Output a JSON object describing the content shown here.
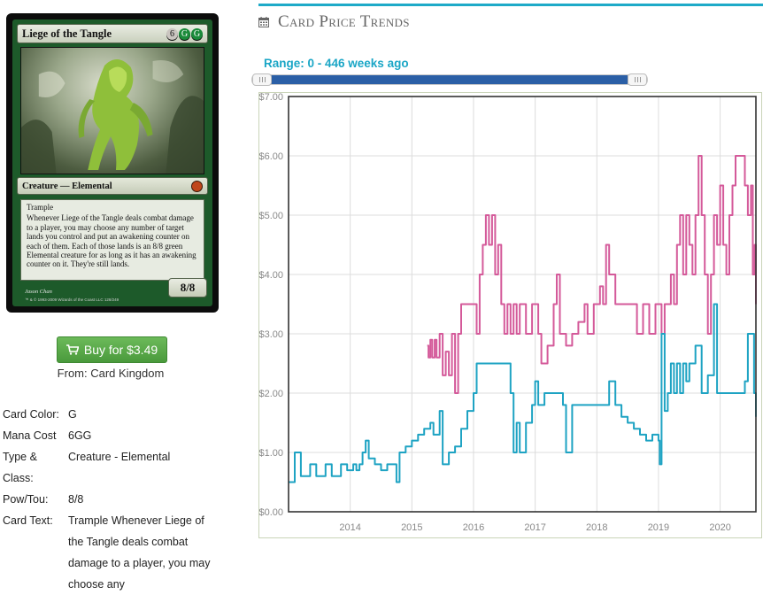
{
  "card": {
    "name": "Liege of the Tangle",
    "mana_symbols": [
      "6",
      "G",
      "G"
    ],
    "type_line": "Creature — Elemental",
    "keyword": "Trample",
    "rules_text": "Whenever Liege of the Tangle deals combat damage to a player, you may choose any number of target lands you control and put an awakening counter on each of them. Each of those lands is an 8/8 green Elemental creature for as long as it has an awakening counter on it. They're still lands.",
    "power_toughness": "8/8",
    "artist": "Jason Chan",
    "copyright": "™ & © 1993-2009 Wizards of the Coast LLC 128/249"
  },
  "buy": {
    "label": "Buy for $3.49",
    "from": "From: Card Kingdom",
    "icon": "cart-icon"
  },
  "details": {
    "color_label": "Card Color:",
    "color_value": "G",
    "cost_label": "Mana Cost",
    "cost_value": "6GG",
    "type_label": "Type & Class:",
    "type_value": "Creature - Elemental",
    "pt_label": "Pow/Tou:",
    "pt_value": "8/8",
    "text_label": "Card Text:",
    "text_value": "Trample Whenever Liege of the Tangle deals combat damage to a player, you may choose any"
  },
  "section": {
    "title": "Card Price Trends",
    "icon": "calendar-icon"
  },
  "range": {
    "label": "Range: 0 - 446 weeks ago",
    "min_weeks": 0,
    "max_weeks": 446
  },
  "colors": {
    "accent": "#1eaac8",
    "buy_green": "#5cb04b",
    "series_pink": "#d45a9a",
    "series_blue": "#1ea3c3"
  },
  "chart_data": {
    "type": "line",
    "title": "",
    "xlabel": "",
    "ylabel": "",
    "xlim": [
      2013.0,
      2020.58
    ],
    "ylim": [
      0,
      7
    ],
    "yticks": [
      "$0.00",
      "$1.00",
      "$2.00",
      "$3.00",
      "$4.00",
      "$5.00",
      "$6.00",
      "$7.00"
    ],
    "xticks": [
      "2014",
      "2015",
      "2016",
      "2017",
      "2018",
      "2019",
      "2020"
    ],
    "grid": true,
    "series": [
      {
        "color": "#d45a9a",
        "points": [
          [
            2015.25,
            2.8
          ],
          [
            2015.27,
            2.6
          ],
          [
            2015.3,
            2.9
          ],
          [
            2015.33,
            2.6
          ],
          [
            2015.37,
            2.9
          ],
          [
            2015.4,
            2.6
          ],
          [
            2015.45,
            3.0
          ],
          [
            2015.5,
            2.3
          ],
          [
            2015.55,
            2.7
          ],
          [
            2015.6,
            2.3
          ],
          [
            2015.65,
            3.0
          ],
          [
            2015.7,
            2.0
          ],
          [
            2015.75,
            3.0
          ],
          [
            2015.8,
            3.5
          ],
          [
            2015.95,
            3.5
          ],
          [
            2016.0,
            3.5
          ],
          [
            2016.05,
            3.0
          ],
          [
            2016.1,
            4.0
          ],
          [
            2016.15,
            4.5
          ],
          [
            2016.2,
            5.0
          ],
          [
            2016.25,
            4.5
          ],
          [
            2016.3,
            5.0
          ],
          [
            2016.35,
            4.0
          ],
          [
            2016.4,
            4.5
          ],
          [
            2016.45,
            3.5
          ],
          [
            2016.5,
            3.0
          ],
          [
            2016.55,
            3.5
          ],
          [
            2016.6,
            3.0
          ],
          [
            2016.65,
            3.5
          ],
          [
            2016.7,
            3.0
          ],
          [
            2016.75,
            3.5
          ],
          [
            2016.85,
            3.0
          ],
          [
            2016.95,
            3.5
          ],
          [
            2017.05,
            3.0
          ],
          [
            2017.1,
            2.5
          ],
          [
            2017.2,
            2.8
          ],
          [
            2017.3,
            3.5
          ],
          [
            2017.35,
            4.0
          ],
          [
            2017.4,
            3.0
          ],
          [
            2017.5,
            2.8
          ],
          [
            2017.6,
            3.0
          ],
          [
            2017.7,
            3.2
          ],
          [
            2017.8,
            3.5
          ],
          [
            2017.85,
            3.0
          ],
          [
            2017.95,
            3.5
          ],
          [
            2018.0,
            3.5
          ],
          [
            2018.05,
            3.8
          ],
          [
            2018.1,
            3.5
          ],
          [
            2018.15,
            4.5
          ],
          [
            2018.2,
            4.0
          ],
          [
            2018.3,
            3.5
          ],
          [
            2018.45,
            3.5
          ],
          [
            2018.55,
            3.5
          ],
          [
            2018.65,
            3.0
          ],
          [
            2018.75,
            3.5
          ],
          [
            2018.85,
            3.0
          ],
          [
            2018.95,
            3.5
          ],
          [
            2019.0,
            3.5
          ],
          [
            2019.05,
            3.0
          ],
          [
            2019.1,
            3.5
          ],
          [
            2019.15,
            3.5
          ],
          [
            2019.2,
            4.0
          ],
          [
            2019.25,
            3.5
          ],
          [
            2019.3,
            4.5
          ],
          [
            2019.35,
            5.0
          ],
          [
            2019.4,
            4.0
          ],
          [
            2019.45,
            5.0
          ],
          [
            2019.5,
            4.5
          ],
          [
            2019.55,
            4.0
          ],
          [
            2019.6,
            5.0
          ],
          [
            2019.65,
            6.0
          ],
          [
            2019.7,
            5.0
          ],
          [
            2019.75,
            4.0
          ],
          [
            2019.8,
            3.0
          ],
          [
            2019.85,
            4.0
          ],
          [
            2019.9,
            5.0
          ],
          [
            2019.95,
            4.5
          ],
          [
            2020.0,
            5.5
          ],
          [
            2020.05,
            4.5
          ],
          [
            2020.1,
            4.0
          ],
          [
            2020.15,
            5.0
          ],
          [
            2020.2,
            5.5
          ],
          [
            2020.25,
            6.0
          ],
          [
            2020.3,
            6.0
          ],
          [
            2020.35,
            6.0
          ],
          [
            2020.4,
            5.5
          ],
          [
            2020.45,
            5.0
          ],
          [
            2020.5,
            5.5
          ],
          [
            2020.53,
            4.0
          ],
          [
            2020.56,
            4.5
          ],
          [
            2020.58,
            3.5
          ]
        ]
      },
      {
        "color": "#1ea3c3",
        "points": [
          [
            2013.0,
            0.5
          ],
          [
            2013.05,
            0.5
          ],
          [
            2013.1,
            1.0
          ],
          [
            2013.15,
            1.0
          ],
          [
            2013.2,
            0.6
          ],
          [
            2013.3,
            0.6
          ],
          [
            2013.35,
            0.8
          ],
          [
            2013.45,
            0.6
          ],
          [
            2013.55,
            0.6
          ],
          [
            2013.6,
            0.8
          ],
          [
            2013.7,
            0.6
          ],
          [
            2013.8,
            0.6
          ],
          [
            2013.85,
            0.8
          ],
          [
            2013.95,
            0.7
          ],
          [
            2014.0,
            0.7
          ],
          [
            2014.05,
            0.8
          ],
          [
            2014.1,
            0.7
          ],
          [
            2014.15,
            0.8
          ],
          [
            2014.2,
            1.0
          ],
          [
            2014.25,
            1.2
          ],
          [
            2014.3,
            0.9
          ],
          [
            2014.4,
            0.8
          ],
          [
            2014.5,
            0.7
          ],
          [
            2014.6,
            0.8
          ],
          [
            2014.7,
            0.8
          ],
          [
            2014.75,
            0.5
          ],
          [
            2014.8,
            1.0
          ],
          [
            2014.9,
            1.1
          ],
          [
            2015.0,
            1.2
          ],
          [
            2015.1,
            1.3
          ],
          [
            2015.2,
            1.4
          ],
          [
            2015.3,
            1.5
          ],
          [
            2015.35,
            1.3
          ],
          [
            2015.45,
            1.7
          ],
          [
            2015.5,
            0.8
          ],
          [
            2015.6,
            1.0
          ],
          [
            2015.7,
            1.1
          ],
          [
            2015.8,
            1.4
          ],
          [
            2015.9,
            1.7
          ],
          [
            2016.0,
            2.0
          ],
          [
            2016.05,
            2.5
          ],
          [
            2016.15,
            2.5
          ],
          [
            2016.25,
            2.5
          ],
          [
            2016.35,
            2.5
          ],
          [
            2016.45,
            2.5
          ],
          [
            2016.55,
            2.5
          ],
          [
            2016.6,
            2.0
          ],
          [
            2016.65,
            1.0
          ],
          [
            2016.7,
            1.5
          ],
          [
            2016.75,
            1.0
          ],
          [
            2016.85,
            1.5
          ],
          [
            2016.95,
            1.8
          ],
          [
            2017.0,
            2.2
          ],
          [
            2017.05,
            1.8
          ],
          [
            2017.15,
            2.0
          ],
          [
            2017.25,
            2.0
          ],
          [
            2017.35,
            2.0
          ],
          [
            2017.45,
            1.8
          ],
          [
            2017.5,
            1.0
          ],
          [
            2017.6,
            1.8
          ],
          [
            2017.7,
            1.8
          ],
          [
            2017.8,
            1.8
          ],
          [
            2017.9,
            1.8
          ],
          [
            2018.0,
            1.8
          ],
          [
            2018.1,
            1.8
          ],
          [
            2018.2,
            2.2
          ],
          [
            2018.3,
            1.8
          ],
          [
            2018.4,
            1.6
          ],
          [
            2018.5,
            1.5
          ],
          [
            2018.6,
            1.4
          ],
          [
            2018.7,
            1.3
          ],
          [
            2018.8,
            1.2
          ],
          [
            2018.9,
            1.3
          ],
          [
            2019.0,
            1.2
          ],
          [
            2019.02,
            0.8
          ],
          [
            2019.05,
            3.0
          ],
          [
            2019.1,
            1.7
          ],
          [
            2019.15,
            2.0
          ],
          [
            2019.2,
            2.5
          ],
          [
            2019.25,
            2.0
          ],
          [
            2019.3,
            2.5
          ],
          [
            2019.35,
            2.0
          ],
          [
            2019.4,
            2.5
          ],
          [
            2019.45,
            2.2
          ],
          [
            2019.5,
            2.5
          ],
          [
            2019.6,
            2.8
          ],
          [
            2019.7,
            2.0
          ],
          [
            2019.8,
            2.3
          ],
          [
            2019.9,
            3.5
          ],
          [
            2019.95,
            2.0
          ],
          [
            2020.0,
            2.0
          ],
          [
            2020.1,
            2.0
          ],
          [
            2020.2,
            2.0
          ],
          [
            2020.3,
            2.0
          ],
          [
            2020.4,
            2.2
          ],
          [
            2020.45,
            3.0
          ],
          [
            2020.5,
            3.0
          ],
          [
            2020.55,
            2.0
          ],
          [
            2020.58,
            1.6
          ]
        ]
      }
    ]
  }
}
